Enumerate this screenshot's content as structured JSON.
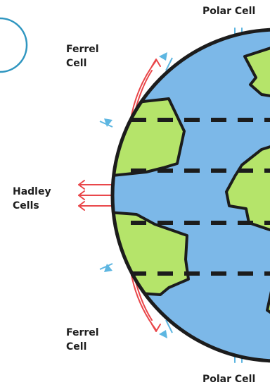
{
  "labels": {
    "polar_top": "Polar Cell",
    "polar_bottom": "Polar Cell",
    "ferrel_top": [
      "Ferrel",
      "Cell"
    ],
    "ferrel_bottom": [
      "Ferrel",
      "Cell"
    ],
    "hadley": [
      "Hadley",
      "Cells"
    ]
  },
  "colors": {
    "ocean": "#7cb8e8",
    "land": "#b5e46a",
    "outline": "#1c1c1c",
    "polar_ferrel_arrows": "#5db6e1",
    "hadley_arrows": "#e9474a",
    "partial_circle": "#2f96c0"
  }
}
